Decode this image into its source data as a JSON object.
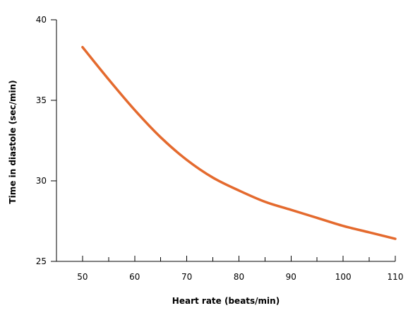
{
  "chart_data": {
    "type": "line",
    "title": "",
    "xlabel": "Heart rate (beats/min)",
    "ylabel": "Time in diastole (sec/min)",
    "xlim": [
      45,
      110
    ],
    "ylim": [
      25,
      40
    ],
    "x_ticks": [
      50,
      60,
      70,
      80,
      90,
      100,
      110
    ],
    "x_tick_labels": [
      "50",
      "60",
      "70",
      "80",
      "90",
      "100",
      "110"
    ],
    "y_ticks": [
      25,
      30,
      35,
      40
    ],
    "y_tick_labels": [
      "25",
      "30",
      "35",
      "40"
    ],
    "grid": false,
    "series": [
      {
        "color": "#E46A2E",
        "x": [
          50,
          55,
          60,
          65,
          70,
          75,
          80,
          85,
          90,
          95,
          100,
          105,
          110
        ],
        "y": [
          38.3,
          36.3,
          34.4,
          32.7,
          31.3,
          30.2,
          29.4,
          28.7,
          28.2,
          27.7,
          27.2,
          26.8,
          26.4
        ]
      }
    ]
  }
}
